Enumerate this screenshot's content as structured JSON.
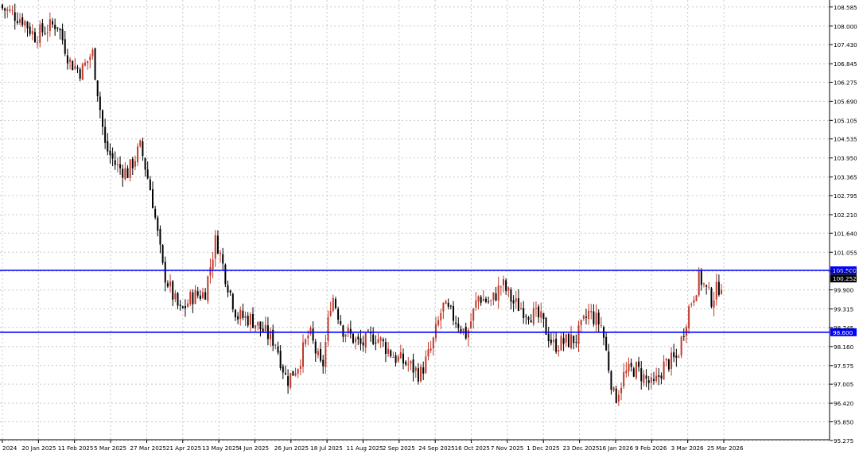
{
  "chart_data": {
    "type": "candlestick",
    "grid": true,
    "ylim": [
      95.3,
      108.8
    ],
    "x_tick_labels": [
      "2024",
      "20 Jan 2025",
      "11 Feb 2025",
      "5 Mar 2025",
      "27 Mar 2025",
      "21 Apr 2025",
      "13 May 2025",
      "4 Jun 2025",
      "26 Jun 2025",
      "18 Jul 2025",
      "11 Aug 2025",
      "2 Sep 2025",
      "24 Sep 2025",
      "16 Oct 2025",
      "7 Nov 2025",
      "1 Dec 2025",
      "23 Dec 2025",
      "16 Jan 2026",
      "9 Feb 2026",
      "3 Mar 2026",
      "25 Mar 2026"
    ],
    "y_ticks": [
      95.275,
      95.85,
      96.42,
      97.005,
      97.575,
      98.16,
      98.745,
      99.315,
      99.9,
      100.475,
      101.055,
      101.64,
      102.21,
      102.795,
      103.365,
      103.95,
      104.535,
      105.105,
      105.69,
      106.275,
      106.845,
      107.43,
      108.0,
      108.585
    ],
    "y_tick_labels": [
      "95.275",
      "95.850",
      "96.420",
      "97.005",
      "97.575",
      "98.160",
      "98.745",
      "99.315",
      "99.900",
      "100.475",
      "101.055",
      "101.640",
      "102.210",
      "102.795",
      "103.365",
      "103.950",
      "104.535",
      "105.105",
      "105.690",
      "106.275",
      "106.845",
      "107.430",
      "108.000",
      "108.585"
    ],
    "horizontal_lines": [
      {
        "label": "100.500",
        "value": 100.5,
        "color": "#0000ff"
      },
      {
        "label": "98.600",
        "value": 98.6,
        "color": "#0000ff"
      }
    ],
    "current_price": {
      "label": "100.252",
      "value": 100.252
    },
    "colors": {
      "bull": "#c0392b",
      "bear": "#000000",
      "grid": "#c8c8c8",
      "level_line": "#0000ff"
    },
    "series": [
      {
        "x": "2024-12-31",
        "close": 108.55
      },
      {
        "x": "2025-01-13",
        "close": 108.2
      },
      {
        "x": "2025-01-20",
        "close": 107.7
      },
      {
        "x": "2025-02-03",
        "close": 108.1
      },
      {
        "x": "2025-02-11",
        "close": 106.9
      },
      {
        "x": "2025-02-18",
        "close": 106.6
      },
      {
        "x": "2025-02-25",
        "close": 107.2
      },
      {
        "x": "2025-03-05",
        "close": 104.3
      },
      {
        "x": "2025-03-12",
        "close": 103.7
      },
      {
        "x": "2025-03-19",
        "close": 103.5
      },
      {
        "x": "2025-03-27",
        "close": 104.3
      },
      {
        "x": "2025-04-03",
        "close": 102.8
      },
      {
        "x": "2025-04-10",
        "close": 100.5
      },
      {
        "x": "2025-04-17",
        "close": 99.6
      },
      {
        "x": "2025-04-21",
        "close": 99.2
      },
      {
        "x": "2025-04-28",
        "close": 99.7
      },
      {
        "x": "2025-05-06",
        "close": 99.8
      },
      {
        "x": "2025-05-13",
        "close": 101.5
      },
      {
        "x": "2025-05-19",
        "close": 100.3
      },
      {
        "x": "2025-05-26",
        "close": 99.1
      },
      {
        "x": "2025-06-04",
        "close": 99.0
      },
      {
        "x": "2025-06-12",
        "close": 98.6
      },
      {
        "x": "2025-06-19",
        "close": 98.3
      },
      {
        "x": "2025-06-26",
        "close": 97.1
      },
      {
        "x": "2025-07-03",
        "close": 97.6
      },
      {
        "x": "2025-07-10",
        "close": 98.6
      },
      {
        "x": "2025-07-18",
        "close": 97.4
      },
      {
        "x": "2025-07-24",
        "close": 99.8
      },
      {
        "x": "2025-07-31",
        "close": 98.7
      },
      {
        "x": "2025-08-11",
        "close": 98.2
      },
      {
        "x": "2025-08-20",
        "close": 98.5
      },
      {
        "x": "2025-09-02",
        "close": 97.8
      },
      {
        "x": "2025-09-10",
        "close": 97.6
      },
      {
        "x": "2025-09-17",
        "close": 97.3
      },
      {
        "x": "2025-09-24",
        "close": 98.1
      },
      {
        "x": "2025-10-01",
        "close": 99.4
      },
      {
        "x": "2025-10-09",
        "close": 99.0
      },
      {
        "x": "2025-10-16",
        "close": 98.5
      },
      {
        "x": "2025-10-23",
        "close": 99.7
      },
      {
        "x": "2025-10-31",
        "close": 99.5
      },
      {
        "x": "2025-11-07",
        "close": 100.1
      },
      {
        "x": "2025-11-14",
        "close": 99.5
      },
      {
        "x": "2025-11-24",
        "close": 99.2
      },
      {
        "x": "2025-12-01",
        "close": 99.0
      },
      {
        "x": "2025-12-09",
        "close": 98.2
      },
      {
        "x": "2025-12-16",
        "close": 98.3
      },
      {
        "x": "2025-12-23",
        "close": 98.4
      },
      {
        "x": "2025-12-31",
        "close": 99.2
      },
      {
        "x": "2026-01-08",
        "close": 98.8
      },
      {
        "x": "2026-01-16",
        "close": 96.5
      },
      {
        "x": "2026-01-22",
        "close": 97.3
      },
      {
        "x": "2026-01-29",
        "close": 97.5
      },
      {
        "x": "2026-02-09",
        "close": 96.9
      },
      {
        "x": "2026-02-16",
        "close": 97.6
      },
      {
        "x": "2026-02-24",
        "close": 97.8
      },
      {
        "x": "2026-03-03",
        "close": 99.3
      },
      {
        "x": "2026-03-10",
        "close": 100.3
      },
      {
        "x": "2026-03-17",
        "close": 99.6
      },
      {
        "x": "2026-03-25",
        "close": 100.25
      }
    ]
  }
}
